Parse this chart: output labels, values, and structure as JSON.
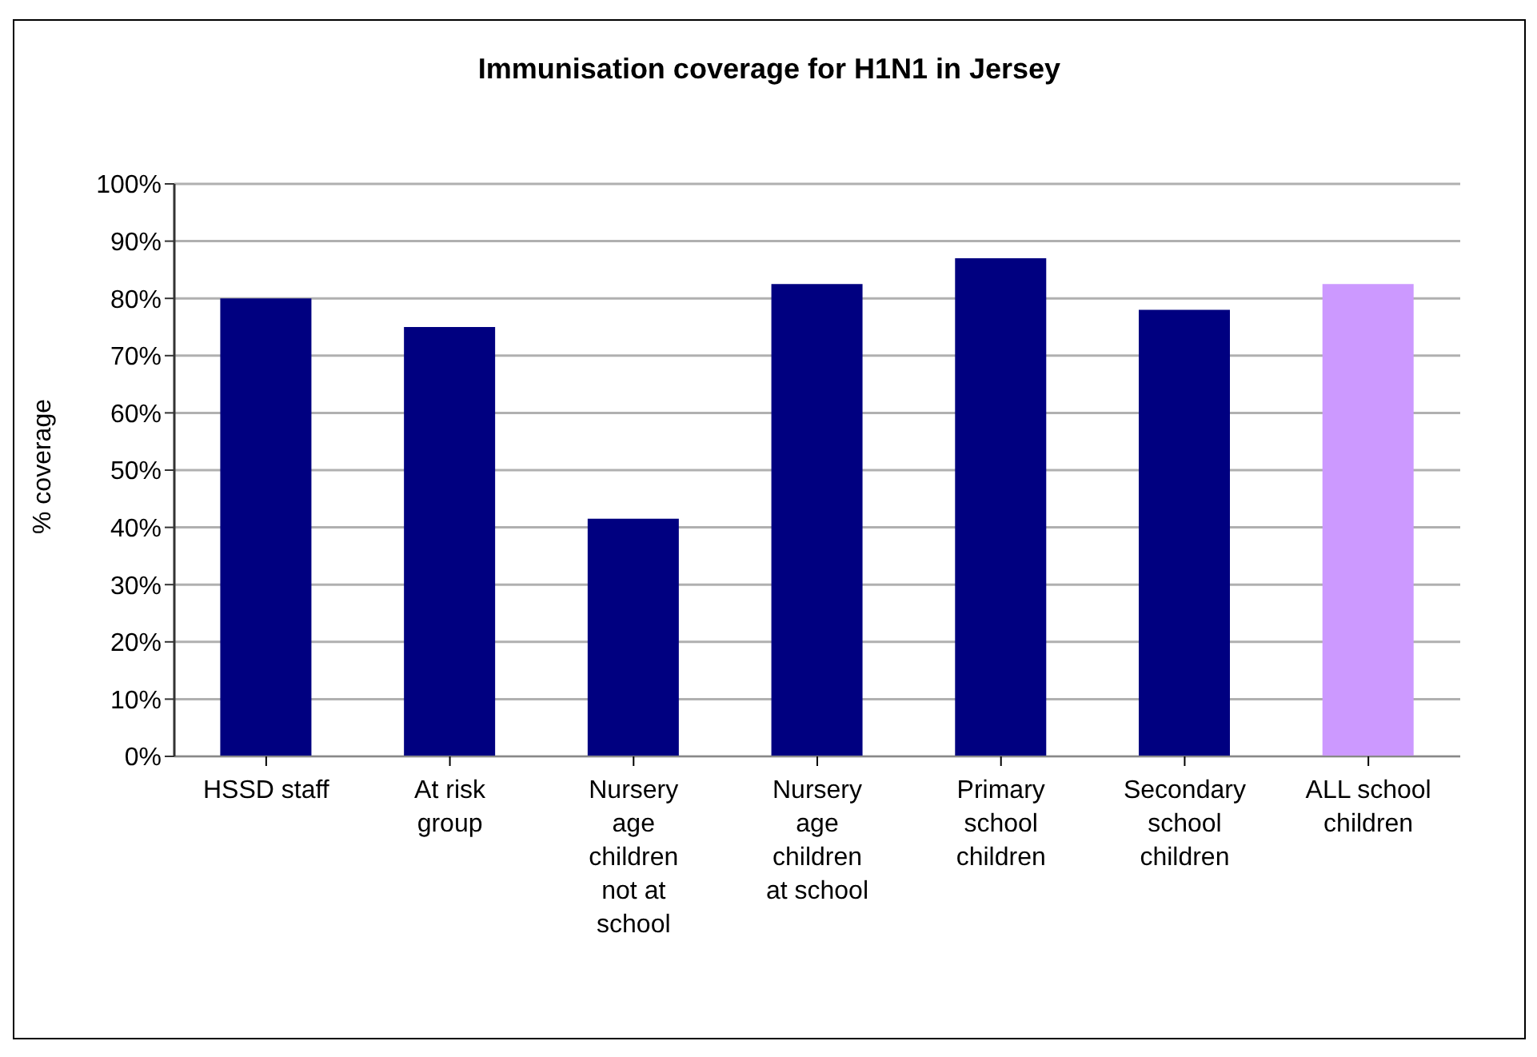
{
  "chart_data": {
    "type": "bar",
    "title": "Immunisation coverage for H1N1 in Jersey",
    "ylabel": "% coverage",
    "categories": [
      "HSSD staff",
      "At risk group",
      "Nursery age children not at school",
      "Nursery age children at school",
      "Primary school children",
      "Secondary school children",
      "ALL school children"
    ],
    "values": [
      80,
      75,
      41.5,
      82.5,
      87,
      78,
      82.5
    ],
    "colors": [
      "#000080",
      "#000080",
      "#000080",
      "#000080",
      "#000080",
      "#000080",
      "#cc99ff"
    ],
    "ylim": [
      0,
      100
    ],
    "yticks": [
      {
        "value": 0,
        "label": "0%"
      },
      {
        "value": 10,
        "label": "10%"
      },
      {
        "value": 20,
        "label": "20%"
      },
      {
        "value": 30,
        "label": "30%"
      },
      {
        "value": 40,
        "label": "40%"
      },
      {
        "value": 50,
        "label": "50%"
      },
      {
        "value": 60,
        "label": "60%"
      },
      {
        "value": 70,
        "label": "70%"
      },
      {
        "value": 80,
        "label": "80%"
      },
      {
        "value": 90,
        "label": "90%"
      },
      {
        "value": 100,
        "label": "100%"
      }
    ],
    "grid": "y"
  }
}
